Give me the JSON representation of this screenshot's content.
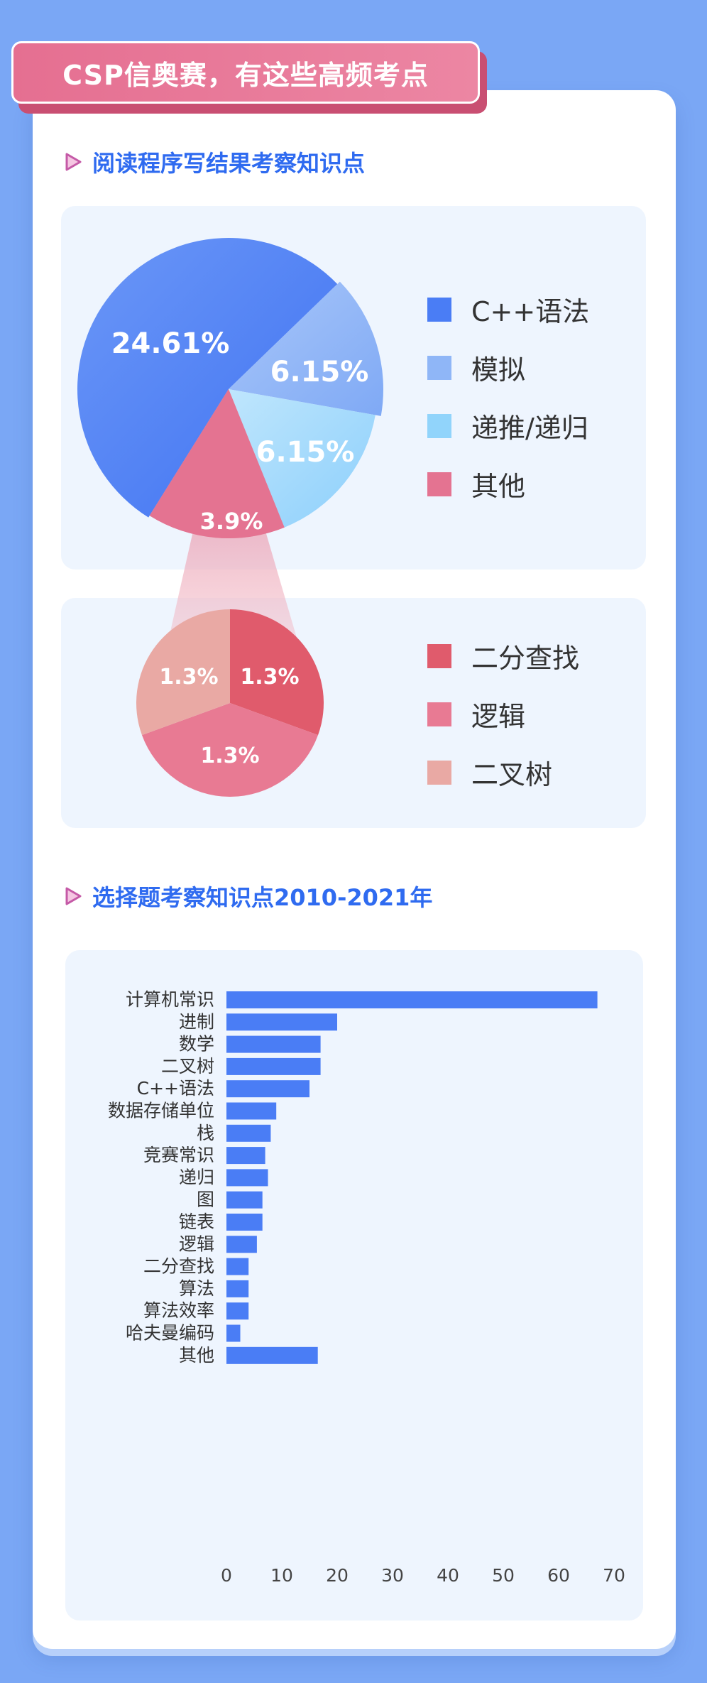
{
  "header": {
    "title": "CSP信奥赛，有这些高频考点"
  },
  "section1": {
    "title": "阅读程序写结果考察知识点"
  },
  "section2": {
    "title": "选择题考察知识点2010-2021年"
  },
  "colors": {
    "blue": "#4a7df5",
    "lightblue": "#8fb6f7",
    "sky": "#91d4fb",
    "pink": "#e47391",
    "red": "#e05b6c",
    "rose": "#e87a93",
    "peach": "#e9a9a4",
    "bar": "#4a7df5"
  },
  "chart_data": [
    {
      "type": "pie",
      "slices": [
        {
          "label": "C++语法",
          "value": 24.61,
          "display": "24.61%",
          "color": "#4a7df5"
        },
        {
          "label": "模拟",
          "value": 6.15,
          "display": "6.15%",
          "color": "#8fb6f7"
        },
        {
          "label": "递推/递归",
          "value": 6.15,
          "display": "6.15%",
          "color": "#91d4fb"
        },
        {
          "label": "其他",
          "value": 3.9,
          "display": "3.9%",
          "color": "#e47391"
        }
      ],
      "legend_position": "right"
    },
    {
      "type": "pie",
      "slices": [
        {
          "label": "二分查找",
          "value": 1.3,
          "display": "1.3%",
          "color": "#e05b6c"
        },
        {
          "label": "逻辑",
          "value": 1.3,
          "display": "1.3%",
          "color": "#e87a93"
        },
        {
          "label": "二叉树",
          "value": 1.3,
          "display": "1.3%",
          "color": "#e9a9a4"
        }
      ],
      "legend_position": "right"
    },
    {
      "type": "bar",
      "orientation": "horizontal",
      "categories": [
        "计算机常识",
        "进制",
        "数学",
        "二叉树",
        "C++语法",
        "数据存储单位",
        "栈",
        "竞赛常识",
        "递归",
        "图",
        "链表",
        "逻辑",
        "二分查找",
        "算法",
        "算法效率",
        "哈夫曼编码",
        "其他"
      ],
      "values": [
        67,
        20,
        17,
        17,
        15,
        9,
        8,
        7,
        7.5,
        6.5,
        6.5,
        5.5,
        4,
        4,
        4,
        2.5,
        16.5
      ],
      "xlim": [
        0,
        70
      ],
      "xticks": [
        "0",
        "10",
        "20",
        "30",
        "40",
        "50",
        "60",
        "70"
      ],
      "grid": false
    }
  ]
}
